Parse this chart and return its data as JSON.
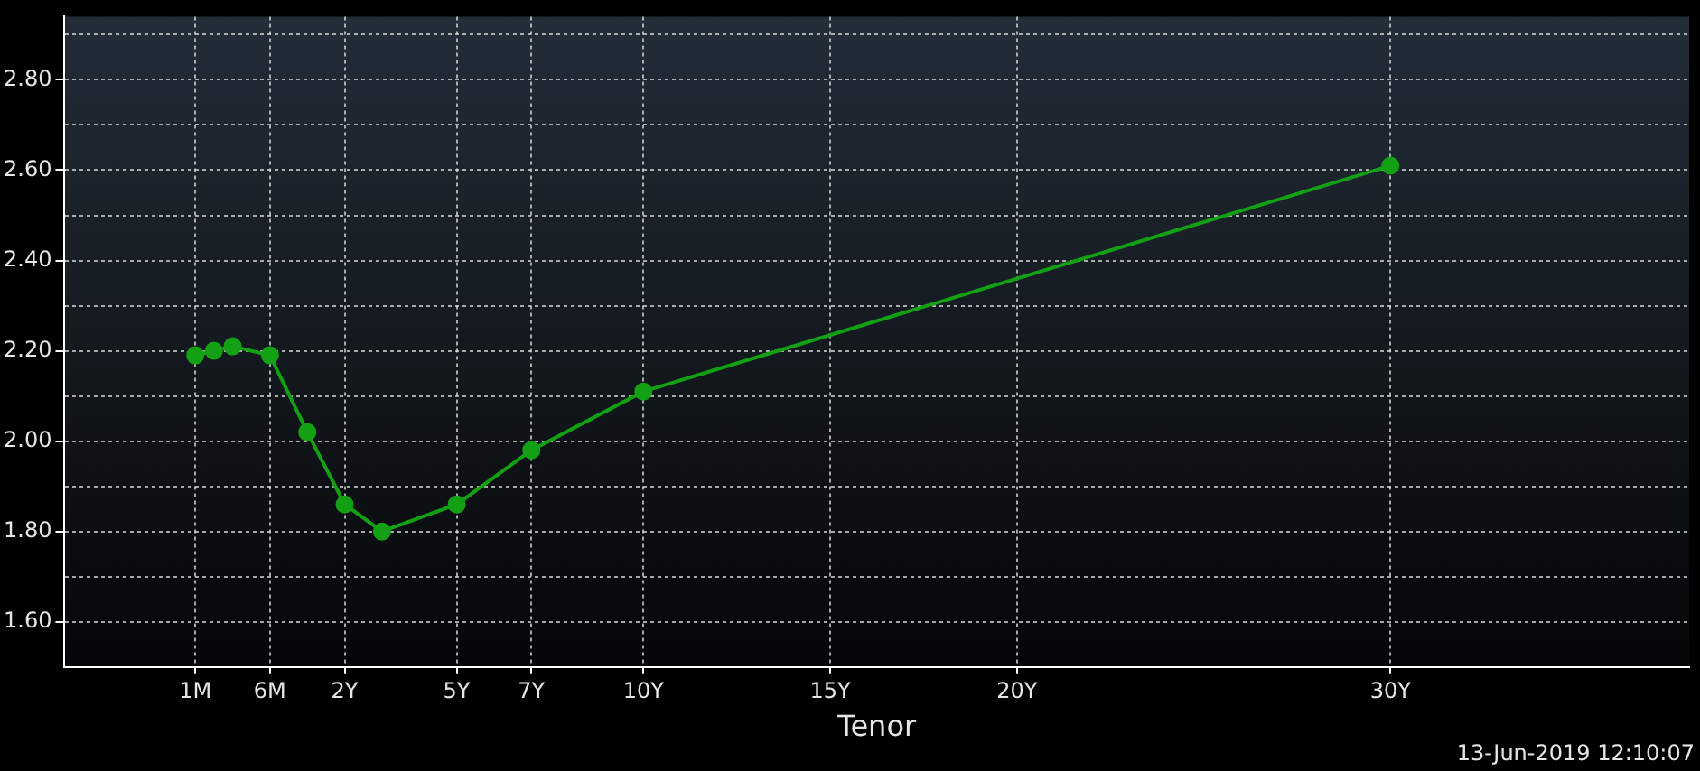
{
  "chart_data": {
    "type": "line",
    "xlabel": "Tenor",
    "categories": [
      null,
      null,
      null,
      null,
      null,
      null,
      null,
      "1M",
      null,
      null,
      null,
      "6M",
      null,
      null,
      null,
      "2Y",
      null,
      null,
      null,
      null,
      null,
      "5Y",
      null,
      null,
      null,
      "7Y",
      null,
      null,
      null,
      null,
      null,
      "10Y",
      null,
      null,
      null,
      null,
      null,
      null,
      null,
      null,
      null,
      "15Y",
      null,
      null,
      null,
      null,
      null,
      null,
      null,
      null,
      null,
      "20Y",
      null,
      null,
      null,
      null,
      null,
      null,
      null,
      null,
      null,
      null,
      null,
      null,
      null,
      null,
      null,
      null,
      null,
      null,
      null,
      "30Y",
      null,
      null,
      null,
      null,
      null,
      null,
      null,
      null,
      null,
      null,
      null,
      null,
      null,
      null,
      null,
      null
    ],
    "series": [
      {
        "color": "#14a014",
        "values": [
          null,
          null,
          null,
          null,
          null,
          null,
          null,
          2.19,
          2.2,
          2.21,
          null,
          2.19,
          null,
          2.02,
          null,
          1.86,
          null,
          1.8,
          null,
          null,
          null,
          1.86,
          null,
          null,
          null,
          1.98,
          null,
          null,
          null,
          null,
          null,
          2.11,
          null,
          null,
          null,
          null,
          null,
          null,
          null,
          null,
          null,
          null,
          null,
          null,
          null,
          null,
          null,
          null,
          null,
          null,
          null,
          null,
          null,
          null,
          null,
          null,
          null,
          null,
          null,
          null,
          null,
          null,
          null,
          null,
          null,
          null,
          null,
          null,
          null,
          null,
          null,
          2.61,
          null,
          null,
          null,
          null,
          null,
          null,
          null,
          null,
          null,
          null,
          null,
          null,
          null,
          null,
          null,
          null
        ]
      }
    ],
    "ylim": [
      1.5,
      2.94
    ],
    "yticks": [
      {
        "value": 1.6,
        "label": "1.60"
      },
      {
        "value": 1.7,
        "label": null
      },
      {
        "value": 1.8,
        "label": "1.80"
      },
      {
        "value": 1.9,
        "label": null
      },
      {
        "value": 2.0,
        "label": "2.00"
      },
      {
        "value": 2.1,
        "label": null
      },
      {
        "value": 2.2,
        "label": "2.20"
      },
      {
        "value": 2.3,
        "label": null
      },
      {
        "value": 2.4,
        "label": "2.40"
      },
      {
        "value": 2.5,
        "label": null
      },
      {
        "value": 2.6,
        "label": "2.60"
      },
      {
        "value": 2.7,
        "label": null
      },
      {
        "value": 2.8,
        "label": "2.80"
      },
      {
        "value": 2.9,
        "label": null
      }
    ],
    "grid": true,
    "legend": false,
    "marker": "circle",
    "line_style": "solid",
    "annotations": [
      "13-Jun-2019 12:10:07"
    ]
  }
}
